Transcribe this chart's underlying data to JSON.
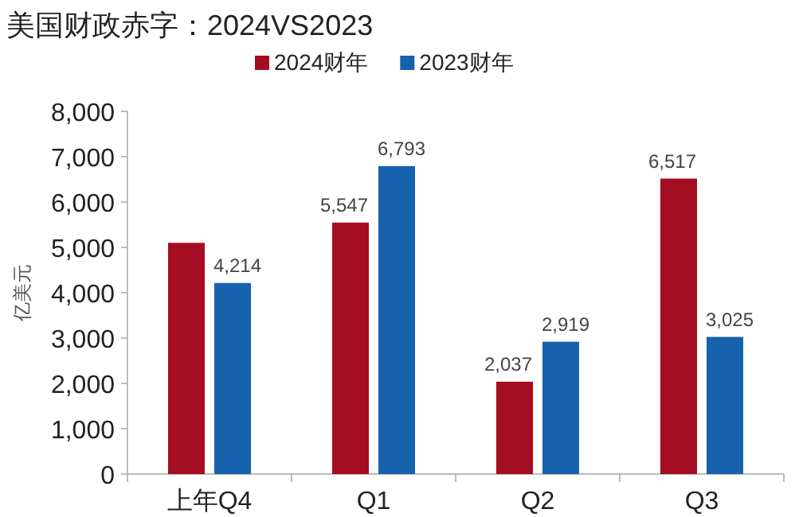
{
  "chart_data": {
    "type": "bar",
    "title": "美国财政赤字：2024VS2023",
    "ylabel": "亿美元",
    "categories": [
      "上年Q4",
      "Q1",
      "Q2",
      "Q3"
    ],
    "series": [
      {
        "name": "2024财年",
        "color": "#a50d22",
        "values": [
          5100,
          5547,
          2037,
          6517
        ],
        "value_labels": [
          null,
          "5,547",
          "2,037",
          "6,517"
        ]
      },
      {
        "name": "2023财年",
        "color": "#1762ad",
        "values": [
          4214,
          6793,
          2919,
          3025
        ],
        "value_labels": [
          "4,214",
          "6,793",
          "2,919",
          "3,025"
        ]
      }
    ],
    "ylim": [
      0,
      8000
    ],
    "yticks": [
      {
        "value": 0,
        "label": "0"
      },
      {
        "value": 1000,
        "label": "1,000"
      },
      {
        "value": 2000,
        "label": "2,000"
      },
      {
        "value": 3000,
        "label": "3,000"
      },
      {
        "value": 4000,
        "label": "4,000"
      },
      {
        "value": 5000,
        "label": "5,000"
      },
      {
        "value": 6000,
        "label": "6,000"
      },
      {
        "value": 7000,
        "label": "7,000"
      },
      {
        "value": 8000,
        "label": "8,000"
      }
    ],
    "grid": false,
    "legend": "top"
  }
}
